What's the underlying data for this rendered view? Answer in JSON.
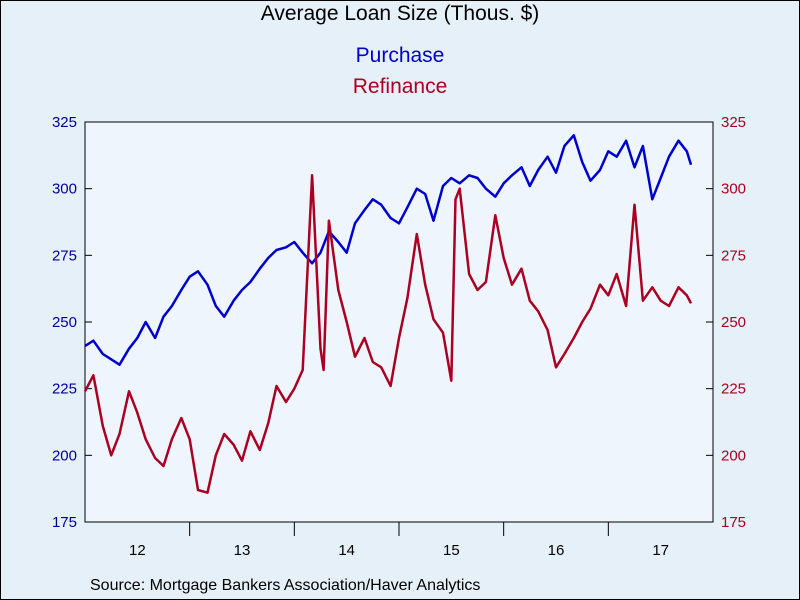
{
  "chart_data": {
    "type": "line",
    "title": "Average Loan Size (Thous. $)",
    "source": "Source:  Mortgage Bankers Association/Haver Analytics",
    "x_tick_labels": [
      "12",
      "13",
      "14",
      "15",
      "16",
      "17"
    ],
    "x_tick_years": [
      2012,
      2013,
      2014,
      2015,
      2016,
      2017
    ],
    "x_range": [
      2012.0,
      2018.0
    ],
    "y_left": {
      "range": [
        175,
        325
      ],
      "ticks": [
        175,
        200,
        225,
        250,
        275,
        300,
        325
      ],
      "color": "#0000cc"
    },
    "y_right": {
      "range": [
        175,
        325
      ],
      "ticks": [
        175,
        200,
        225,
        250,
        275,
        300,
        325
      ],
      "color": "#aa0022"
    },
    "grid": false,
    "legend_placement": "top-center",
    "plot_background": "#eef5fd",
    "series": [
      {
        "name": "Purchase",
        "axis": "left",
        "color": "#0000cc",
        "x": [
          2012.0,
          2012.08,
          2012.17,
          2012.25,
          2012.33,
          2012.42,
          2012.5,
          2012.58,
          2012.67,
          2012.75,
          2012.83,
          2012.92,
          2013.0,
          2013.08,
          2013.17,
          2013.25,
          2013.33,
          2013.42,
          2013.5,
          2013.58,
          2013.67,
          2013.75,
          2013.83,
          2013.92,
          2014.0,
          2014.08,
          2014.17,
          2014.25,
          2014.33,
          2014.42,
          2014.5,
          2014.58,
          2014.67,
          2014.75,
          2014.83,
          2014.92,
          2015.0,
          2015.08,
          2015.17,
          2015.25,
          2015.33,
          2015.42,
          2015.5,
          2015.58,
          2015.67,
          2015.75,
          2015.83,
          2015.92,
          2016.0,
          2016.08,
          2016.17,
          2016.25,
          2016.33,
          2016.42,
          2016.5,
          2016.58,
          2016.67,
          2016.75,
          2016.83,
          2016.92,
          2017.0,
          2017.08,
          2017.17,
          2017.25,
          2017.33,
          2017.42,
          2017.5,
          2017.58,
          2017.67,
          2017.75,
          2017.79
        ],
        "values": [
          241,
          243,
          238,
          236,
          234,
          240,
          244,
          250,
          244,
          252,
          256,
          262,
          267,
          269,
          264,
          256,
          252,
          258,
          262,
          265,
          270,
          274,
          277,
          278,
          280,
          276,
          272,
          276,
          284,
          280,
          276,
          287,
          292,
          296,
          294,
          289,
          287,
          293,
          300,
          298,
          288,
          301,
          304,
          302,
          305,
          304,
          300,
          297,
          302,
          305,
          308,
          301,
          307,
          312,
          306,
          316,
          320,
          310,
          303,
          307,
          314,
          312,
          318,
          308,
          316,
          296,
          304,
          312,
          318,
          314,
          309
        ]
      },
      {
        "name": "Refinance",
        "axis": "right",
        "color": "#aa0022",
        "x": [
          2012.0,
          2012.08,
          2012.17,
          2012.25,
          2012.33,
          2012.42,
          2012.5,
          2012.58,
          2012.67,
          2012.75,
          2012.83,
          2012.92,
          2013.0,
          2013.08,
          2013.17,
          2013.25,
          2013.33,
          2013.42,
          2013.5,
          2013.58,
          2013.67,
          2013.75,
          2013.83,
          2013.92,
          2014.0,
          2014.08,
          2014.17,
          2014.25,
          2014.28,
          2014.33,
          2014.42,
          2014.5,
          2014.58,
          2014.67,
          2014.75,
          2014.83,
          2014.92,
          2015.0,
          2015.08,
          2015.17,
          2015.25,
          2015.33,
          2015.42,
          2015.5,
          2015.54,
          2015.58,
          2015.67,
          2015.75,
          2015.83,
          2015.92,
          2016.0,
          2016.08,
          2016.17,
          2016.25,
          2016.33,
          2016.42,
          2016.5,
          2016.58,
          2016.67,
          2016.75,
          2016.83,
          2016.92,
          2017.0,
          2017.08,
          2017.17,
          2017.25,
          2017.33,
          2017.42,
          2017.5,
          2017.58,
          2017.67,
          2017.75,
          2017.79
        ],
        "values": [
          224,
          230,
          211,
          200,
          208,
          224,
          216,
          206,
          199,
          196,
          206,
          214,
          206,
          187,
          186,
          200,
          208,
          204,
          198,
          209,
          202,
          212,
          226,
          220,
          225,
          232,
          305,
          240,
          232,
          288,
          262,
          250,
          237,
          244,
          235,
          233,
          226,
          244,
          259,
          283,
          264,
          251,
          246,
          228,
          296,
          300,
          268,
          262,
          265,
          290,
          274,
          264,
          270,
          258,
          254,
          247,
          233,
          238,
          244,
          250,
          255,
          264,
          260,
          268,
          256,
          294,
          258,
          263,
          258,
          256,
          263,
          260,
          257
        ]
      }
    ]
  }
}
